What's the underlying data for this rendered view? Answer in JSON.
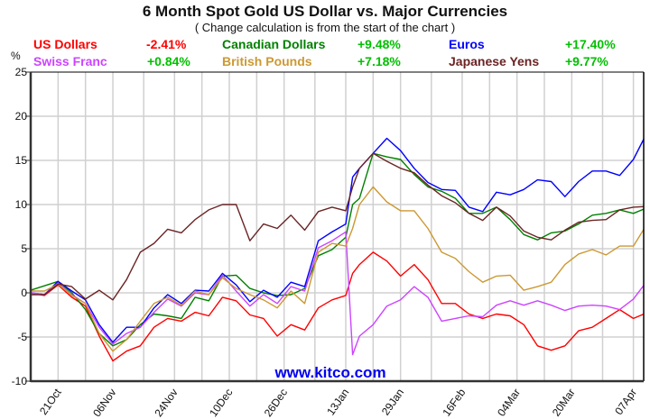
{
  "chart_data": {
    "type": "line",
    "title": "6 Month Spot Gold US Dollar vs. Major Currencies",
    "subtitle": "( Change calculation is from the start of the chart )",
    "ylabel": "%",
    "ylim": [
      -10,
      25
    ],
    "yticks": [
      25,
      20,
      15,
      10,
      5,
      0,
      -5,
      -10
    ],
    "xticks": [
      "21Oct",
      "06Nov",
      "24Nov",
      "10Dec",
      "26Dec",
      "13Jan",
      "29Jan",
      "16Feb",
      "04Mar",
      "20Mar",
      "07Apr"
    ],
    "xlim": [
      "13Oct",
      "10Apr"
    ],
    "grid": true,
    "legend_placement": "top",
    "watermark": "www.kitco.com",
    "x": [
      "13Oct",
      "17Oct",
      "21Oct",
      "25Oct",
      "29Oct",
      "02Nov",
      "06Nov",
      "10Nov",
      "14Nov",
      "18Nov",
      "22Nov",
      "26Nov",
      "30Nov",
      "04Dec",
      "08Dec",
      "12Dec",
      "16Dec",
      "20Dec",
      "24Dec",
      "28Dec",
      "01Jan",
      "05Jan",
      "09Jan",
      "13Jan",
      "15Jan",
      "17Jan",
      "21Jan",
      "25Jan",
      "29Jan",
      "02Feb",
      "06Feb",
      "10Feb",
      "14Feb",
      "18Feb",
      "22Feb",
      "26Feb",
      "02Mar",
      "06Mar",
      "10Mar",
      "14Mar",
      "18Mar",
      "22Mar",
      "26Mar",
      "30Mar",
      "03Apr",
      "07Apr",
      "10Apr"
    ],
    "series": [
      {
        "name": "US Dollars",
        "change": "-2.41%",
        "color": "#ff0000",
        "change_color": "#ff0000",
        "values": [
          0,
          -0.3,
          0.9,
          -0.5,
          -1.5,
          -4.9,
          -7.7,
          -6.6,
          -6.0,
          -3.9,
          -2.9,
          -3.2,
          -2.2,
          -2.6,
          -0.5,
          -0.9,
          -2.5,
          -2.9,
          -4.9,
          -3.6,
          -4.2,
          -1.7,
          -0.8,
          -0.3,
          2.2,
          3.2,
          4.6,
          3.6,
          1.9,
          3.2,
          1.5,
          -1.2,
          -1.2,
          -2.4,
          -2.9,
          -2.4,
          -2.6,
          -3.6,
          -6.0,
          -6.5,
          -6.0,
          -4.3,
          -3.9,
          -2.9,
          -1.9,
          -2.9,
          -2.41
        ]
      },
      {
        "name": "Canadian Dollars",
        "change": "+9.48%",
        "color": "#008000",
        "change_color": "#00c000",
        "values": [
          0.3,
          0.8,
          1.3,
          0,
          -1.9,
          -4.6,
          -6.0,
          -5.3,
          -3.6,
          -2.4,
          -2.6,
          -2.9,
          -0.5,
          -0.9,
          1.9,
          2.0,
          0.5,
          0,
          -0.3,
          -0.2,
          0.5,
          4.2,
          4.9,
          6.3,
          10.0,
          10.7,
          15.8,
          15.4,
          15.1,
          13.4,
          12.0,
          11.5,
          10.7,
          9.0,
          9.0,
          9.7,
          8.3,
          6.6,
          6.0,
          6.8,
          7.0,
          7.8,
          8.8,
          9.0,
          9.4,
          9.0,
          9.48
        ]
      },
      {
        "name": "Euros",
        "change": "+17.40%",
        "color": "#0000ff",
        "change_color": "#00c000",
        "values": [
          0,
          -0.2,
          1.3,
          0.2,
          -0.8,
          -3.6,
          -5.6,
          -3.9,
          -3.9,
          -1.7,
          -0.2,
          -1.2,
          0.3,
          0.2,
          2.2,
          0.9,
          -1.0,
          0.3,
          -0.5,
          1.2,
          0.7,
          5.9,
          6.9,
          7.8,
          13.1,
          14.1,
          15.8,
          17.5,
          16.1,
          14.1,
          12.5,
          11.7,
          11.6,
          9.7,
          9.2,
          11.4,
          11.1,
          11.7,
          12.8,
          12.6,
          10.9,
          12.6,
          13.8,
          13.8,
          13.3,
          15.1,
          17.4
        ]
      },
      {
        "name": "Swiss Franc",
        "change": "+0.84%",
        "color": "#cc44ff",
        "change_color": "#00c000",
        "values": [
          0,
          -0.2,
          1.1,
          -0.2,
          -1.2,
          -3.9,
          -5.8,
          -4.6,
          -3.9,
          -2.2,
          -0.7,
          -1.5,
          0,
          -0.2,
          2.0,
          0.2,
          -1.5,
          -0.2,
          -1.2,
          0.7,
          0.2,
          5.1,
          5.9,
          6.9,
          -7.0,
          -4.9,
          -3.6,
          -1.5,
          -0.8,
          0.7,
          -0.5,
          -3.2,
          -2.9,
          -2.6,
          -2.7,
          -1.4,
          -0.9,
          -1.4,
          -0.9,
          -1.4,
          -2.0,
          -1.5,
          -1.4,
          -1.5,
          -1.9,
          -0.7,
          0.84
        ]
      },
      {
        "name": "British Pounds",
        "change": "+7.18%",
        "color": "#cc9933",
        "change_color": "#00c000",
        "values": [
          0.2,
          0.2,
          1.0,
          -0.3,
          -1.2,
          -4.6,
          -6.6,
          -5.3,
          -3.2,
          -1.2,
          -0.5,
          -1.4,
          0.2,
          -0.2,
          1.7,
          0.5,
          -0.2,
          -0.8,
          -1.7,
          0.2,
          -1.2,
          4.6,
          5.6,
          5.3,
          7.3,
          10.0,
          12.0,
          10.3,
          9.3,
          9.3,
          7.3,
          4.6,
          3.9,
          2.4,
          1.2,
          1.9,
          2.0,
          0.3,
          0.7,
          1.2,
          3.2,
          4.4,
          4.9,
          4.3,
          5.3,
          5.3,
          7.18
        ]
      },
      {
        "name": "Japanese Yens",
        "change": "+9.77%",
        "color": "#6b2424",
        "change_color": "#00c000",
        "values": [
          -0.2,
          -0.2,
          1.0,
          0.7,
          -0.7,
          0.3,
          -0.8,
          1.5,
          4.6,
          5.6,
          7.2,
          6.8,
          8.3,
          9.4,
          10.0,
          10.0,
          5.9,
          7.8,
          7.3,
          8.8,
          7.1,
          9.2,
          9.7,
          9.3,
          12.0,
          14.1,
          15.8,
          14.9,
          14.1,
          13.6,
          12.2,
          11.0,
          10.2,
          9.0,
          8.2,
          9.7,
          8.7,
          7.0,
          6.3,
          6.0,
          7.1,
          8.0,
          8.2,
          8.3,
          9.4,
          9.7,
          9.77
        ]
      }
    ]
  }
}
